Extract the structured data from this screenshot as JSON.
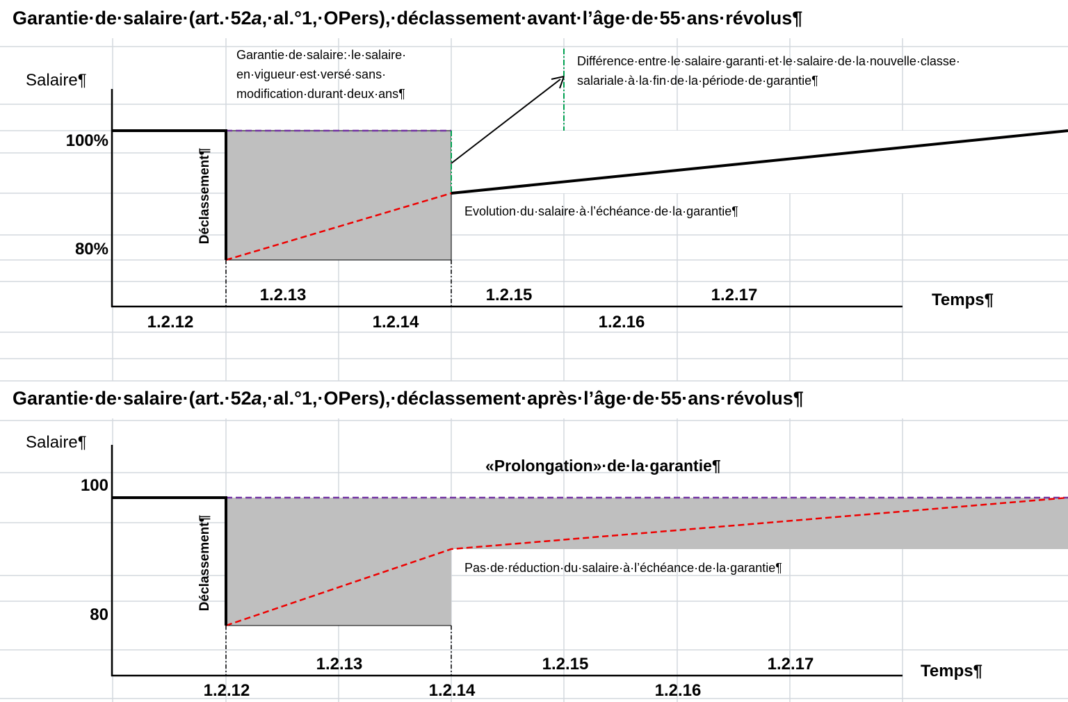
{
  "top": {
    "title": [
      "Garantie·de·salaire·(art.·52",
      "a",
      ",·al.°1,·OPers),·déclassement·avant·l’âge·de·55·ans·révolus¶"
    ],
    "y_axis_label": "Salaire¶",
    "level_high": "100%",
    "level_low": "80%",
    "downgrade_label": "Déclassement¶",
    "guarantee_note": [
      "Garantie·de·salaire:·le·salaire·",
      "en·vigueur·est·versé·sans·",
      "modification·durant·deux·ans¶"
    ],
    "difference_note": [
      "Différence·entre·le·salaire·garanti·et·le·salaire·de·la·nouvelle·classe·",
      "salariale·à·la·fin·de·la·période·de·garantie¶"
    ],
    "evolution_note": "Evolution·du·salaire·à·l’échéance·de·la·garantie¶",
    "dates_upper": [
      "1.2.13",
      "1.2.15",
      "1.2.17"
    ],
    "dates_lower": [
      "1.2.12",
      "1.2.14",
      "1.2.16"
    ],
    "x_axis_label": "Temps¶"
  },
  "bottom": {
    "title": [
      "Garantie·de·salaire·(art.·52",
      "a",
      ",·al.°1,·OPers),·déclassement·après·l’âge·de·55·ans·révolus¶"
    ],
    "y_axis_label": "Salaire¶",
    "level_high": "100",
    "level_low": "80",
    "downgrade_label": "Déclassement¶",
    "extension_note": "«Prolongation»·de·la·garantie¶",
    "no_reduction_note": "Pas·de·réduction·du·salaire·à·l’échéance·de·la·garantie¶",
    "dates_upper": [
      "1.2.13",
      "1.2.15",
      "1.2.17"
    ],
    "dates_lower": [
      "1.2.12",
      "1.2.14",
      "1.2.16"
    ],
    "x_axis_label": "Temps¶"
  }
}
